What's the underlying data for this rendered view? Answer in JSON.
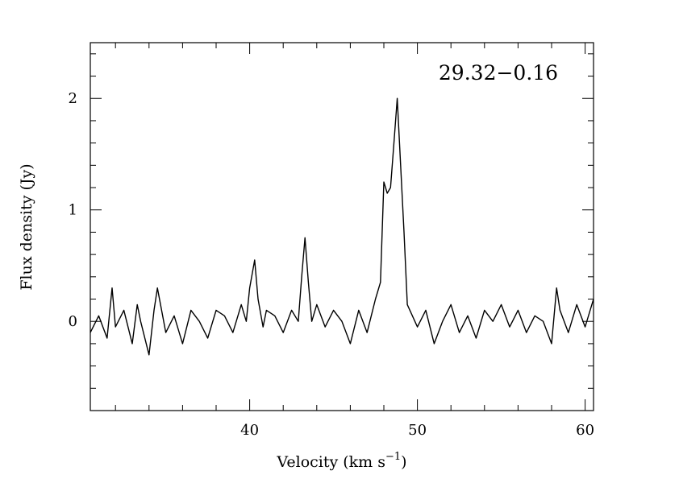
{
  "chart_data": {
    "type": "line",
    "annotation": "29.32−0.16",
    "xlabel": "Velocity (km s",
    "xlabel_sup": "−1",
    "xlabel_end": ")",
    "ylabel": "Flux density (Jy)",
    "xlim": [
      30.5,
      60.5
    ],
    "ylim": [
      -0.8,
      2.5
    ],
    "xticks_major": [
      40,
      50,
      60
    ],
    "xtick_labels": [
      "40",
      "50",
      "60"
    ],
    "yticks_major": [
      0,
      1,
      2
    ],
    "ytick_labels": [
      "0",
      "1",
      "2"
    ],
    "grid": false,
    "line_color": "#000000",
    "series": [
      {
        "x": [
          30.5,
          31.0,
          31.5,
          31.8,
          32.0,
          32.5,
          33.0,
          33.3,
          33.5,
          34.0,
          34.3,
          34.5,
          35.0,
          35.5,
          36.0,
          36.5,
          37.0,
          37.5,
          38.0,
          38.5,
          39.0,
          39.5,
          39.8,
          40.0,
          40.3,
          40.5,
          40.8,
          41.0,
          41.5,
          42.0,
          42.5,
          42.9,
          43.1,
          43.3,
          43.5,
          43.7,
          44.0,
          44.5,
          45.0,
          45.5,
          46.0,
          46.5,
          47.0,
          47.5,
          47.8,
          48.0,
          48.2,
          48.4,
          48.6,
          48.8,
          49.0,
          49.2,
          49.4,
          50.0,
          50.5,
          51.0,
          51.5,
          52.0,
          52.5,
          53.0,
          53.5,
          54.0,
          54.5,
          55.0,
          55.5,
          56.0,
          56.5,
          57.0,
          57.5,
          58.0,
          58.3,
          58.5,
          59.0,
          59.5,
          60.0,
          60.5
        ],
        "y": [
          -0.1,
          0.05,
          -0.15,
          0.3,
          -0.05,
          0.1,
          -0.2,
          0.15,
          0.0,
          -0.3,
          0.1,
          0.3,
          -0.1,
          0.05,
          -0.2,
          0.1,
          0.0,
          -0.15,
          0.1,
          0.05,
          -0.1,
          0.15,
          0.0,
          0.3,
          0.55,
          0.2,
          -0.05,
          0.1,
          0.05,
          -0.1,
          0.1,
          0.0,
          0.4,
          0.75,
          0.35,
          0.0,
          0.15,
          -0.05,
          0.1,
          0.0,
          -0.2,
          0.1,
          -0.1,
          0.2,
          0.35,
          1.25,
          1.15,
          1.2,
          1.6,
          2.0,
          1.4,
          0.8,
          0.15,
          -0.05,
          0.1,
          -0.2,
          0.0,
          0.15,
          -0.1,
          0.05,
          -0.15,
          0.1,
          0.0,
          0.15,
          -0.05,
          0.1,
          -0.1,
          0.05,
          0.0,
          -0.2,
          0.3,
          0.1,
          -0.1,
          0.15,
          -0.05,
          0.2
        ]
      }
    ]
  }
}
